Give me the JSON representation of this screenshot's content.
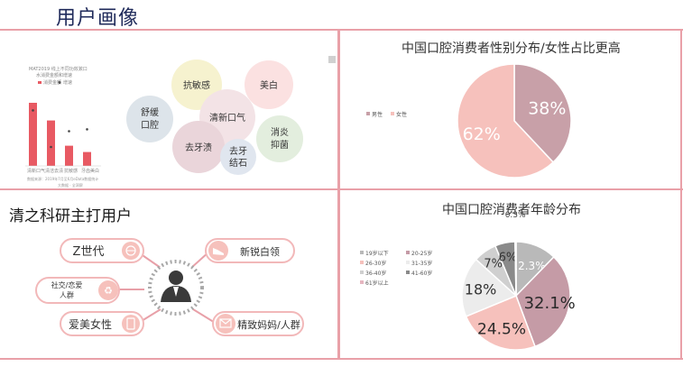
{
  "page_title": "用户画像",
  "left_top": {
    "mini_chart": {
      "title_line1": "MAT2019 线上不同功效漱口",
      "title_line2": "水消费金额和增速",
      "legend": [
        "消费金额",
        "增速"
      ],
      "categories": [
        "清新口气",
        "清洁去渍",
        "抗敏感",
        "牙齿美白"
      ],
      "bar_values": [
        100,
        72,
        32,
        22
      ],
      "growth_points": [
        88,
        30,
        55,
        58
      ],
      "source": "数据来源：2019年7月至6月eData数据统计",
      "footer": "大数据 · 全洞察"
    },
    "bubbles": [
      "抗敏感",
      "美白",
      "舒缓口腔",
      "清新口气",
      "消炎抑菌",
      "去牙渍",
      "去牙结石"
    ]
  },
  "right_top": {
    "title": "中国口腔消费者性别分布/女性占比更高",
    "legend": [
      "男性",
      "女性"
    ],
    "chart_data": {
      "type": "pie",
      "categories": [
        "男性",
        "女性"
      ],
      "values": [
        38,
        62
      ],
      "labels": [
        "38%",
        "62%"
      ],
      "colors": [
        "#c8a0a8",
        "#f6c1bc"
      ]
    }
  },
  "left_bottom": {
    "title": "清之科研主打用户",
    "items": [
      "Z世代",
      "新锐白领",
      "社交/恋爱人群",
      "爱美女性",
      "精致妈妈/人群"
    ]
  },
  "right_bottom": {
    "title": "中国口腔消费者年龄分布",
    "legend": [
      "19岁以下",
      "20-25岁",
      "26-30岁",
      "31-35岁",
      "36-40岁",
      "41-60岁",
      "61岁以上"
    ],
    "chart_data": {
      "type": "pie",
      "categories": [
        "19岁以下",
        "20-25岁",
        "26-30岁",
        "31-35岁",
        "36-40岁",
        "41-60岁",
        "61岁以上"
      ],
      "values": [
        12.3,
        32.1,
        24.5,
        18,
        7,
        6,
        0.3
      ],
      "labels": [
        "12.3%",
        "32.1%",
        "24.5%",
        "18%",
        "7%",
        "6%",
        "0.3%"
      ],
      "colors": [
        "#b9b9b9",
        "#c59ba6",
        "#f6c1bc",
        "#ececec",
        "#cfcfcf",
        "#8a8a8a",
        "#e6b6c0"
      ]
    }
  }
}
